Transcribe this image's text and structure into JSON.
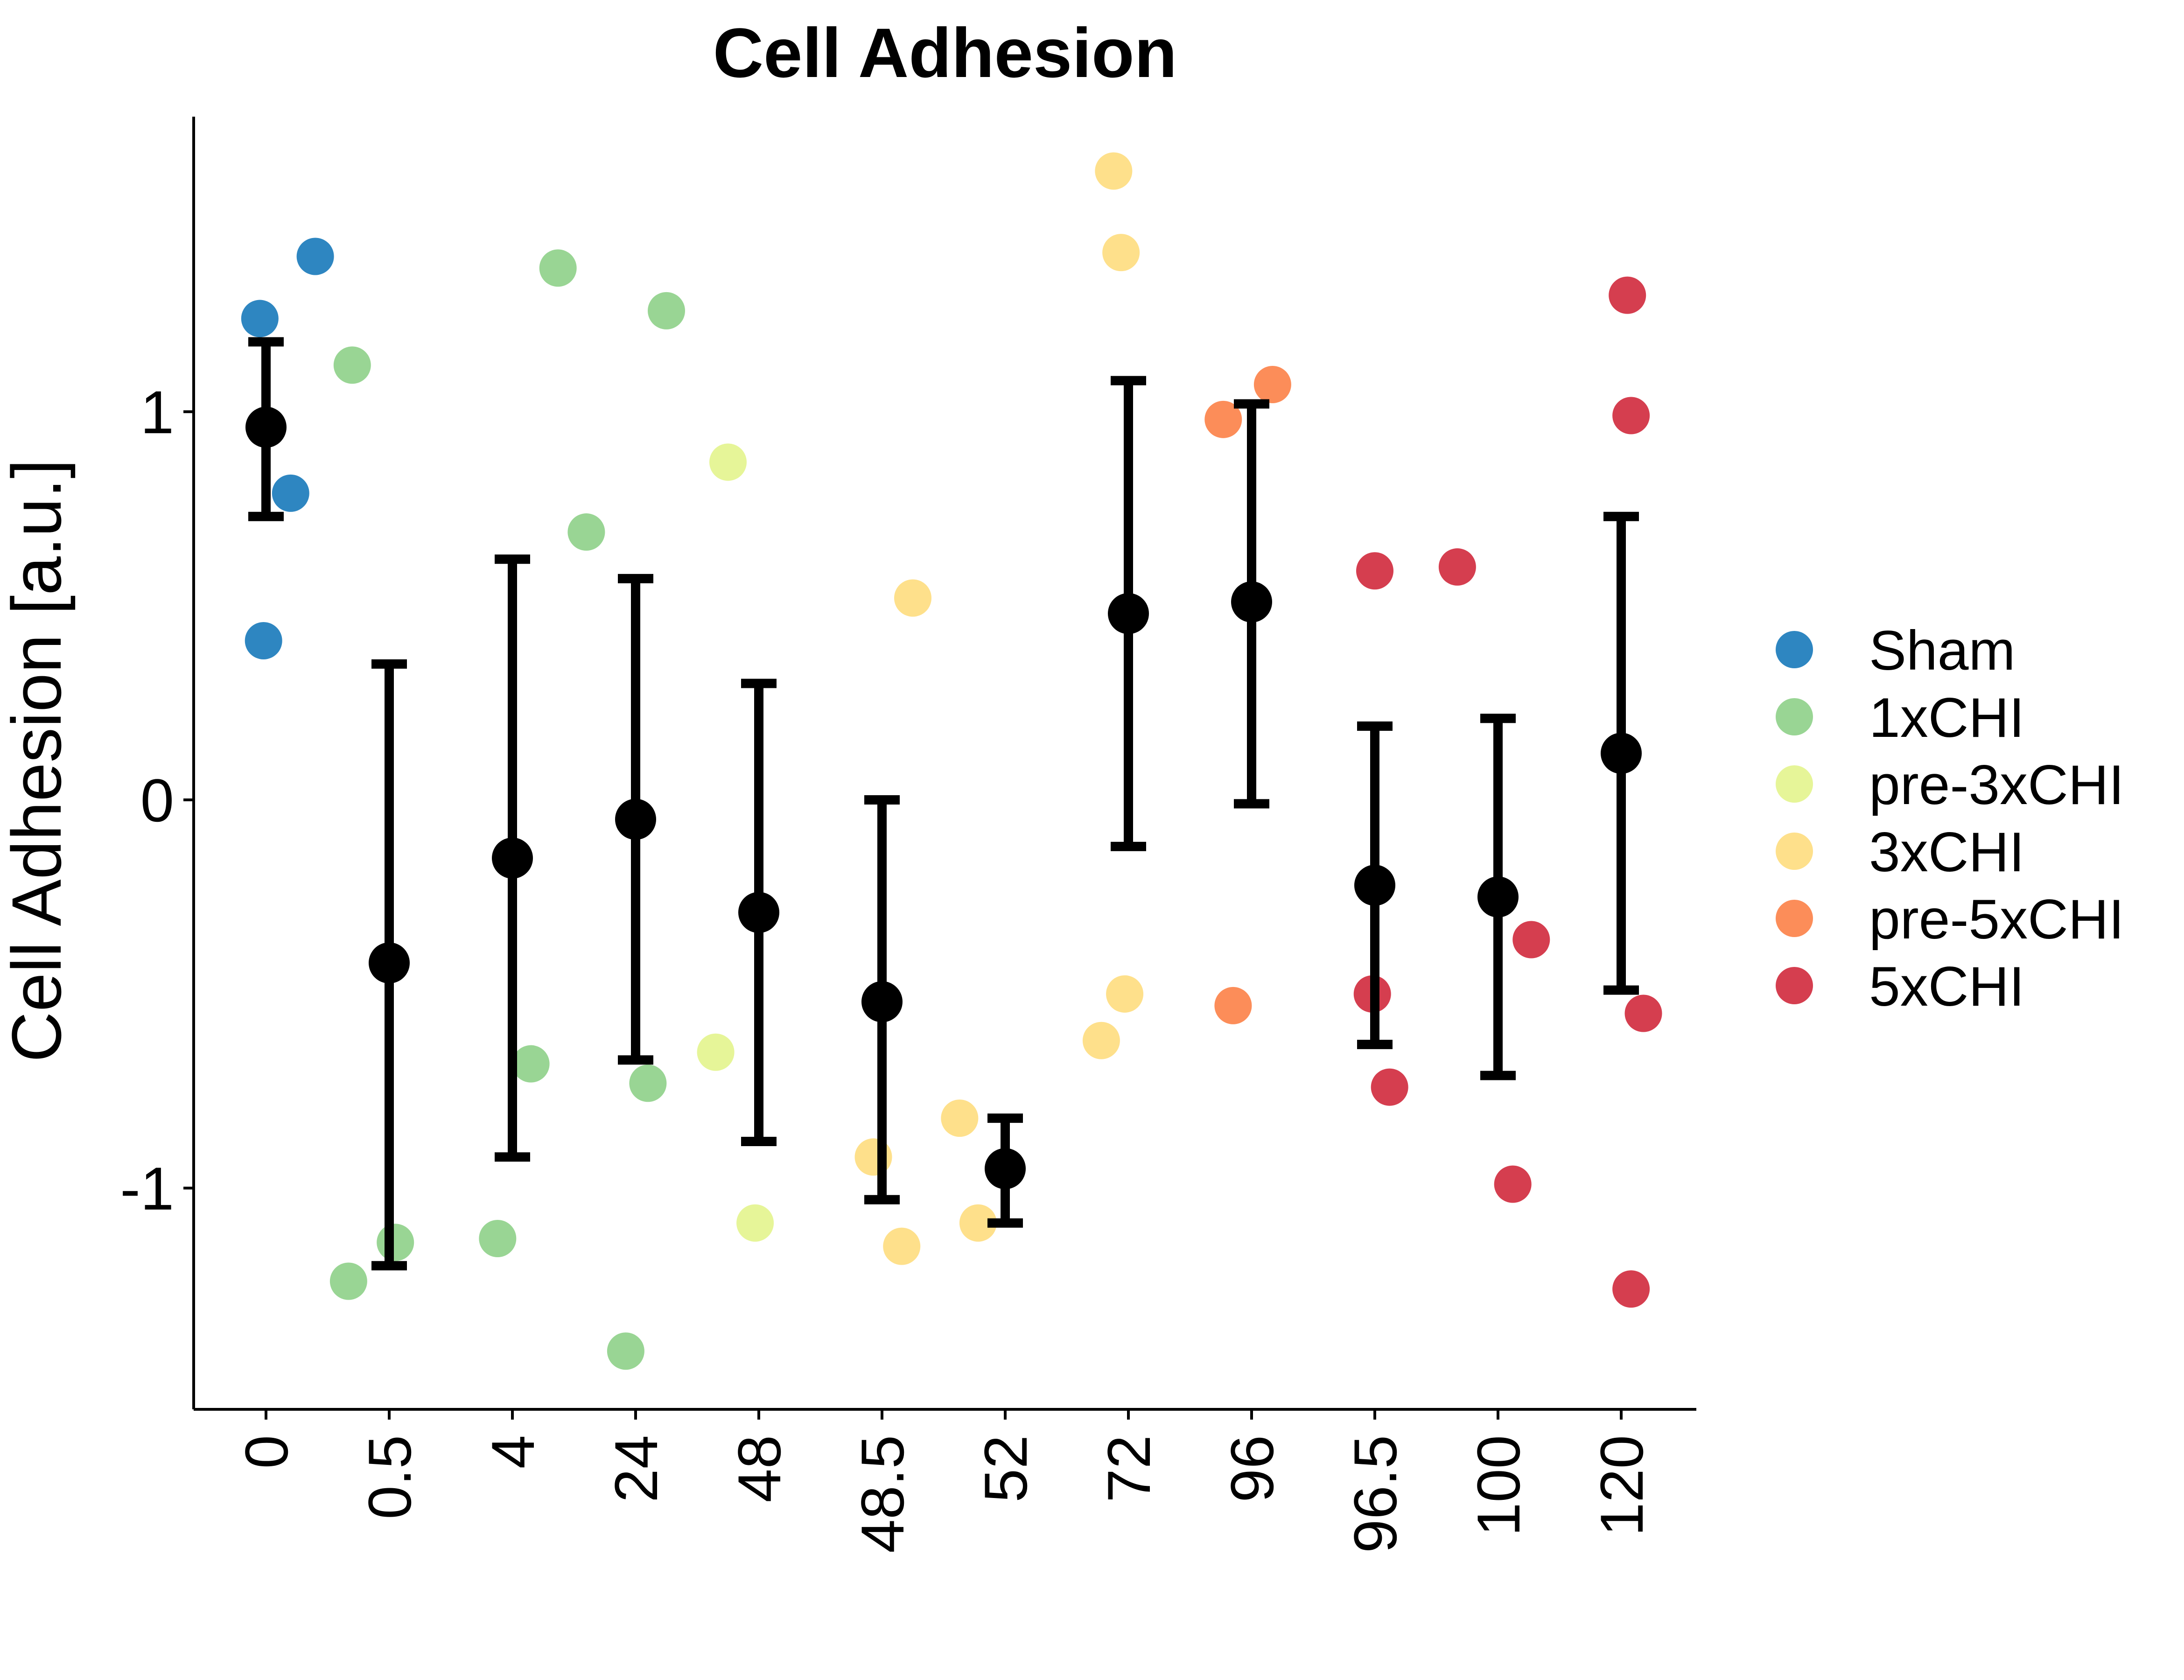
{
  "chart_data": {
    "type": "scatter",
    "title": "Cell Adhesion",
    "xlabel": "",
    "ylabel": "Cell Adhesion [a.u.]",
    "ylim": [
      -1.57,
      1.76
    ],
    "yticks": [
      1,
      0,
      -1
    ],
    "ytick_labels": [
      "1",
      "0",
      "-1"
    ],
    "categories": [
      "0",
      "0.5",
      "4",
      "24",
      "48",
      "48.5",
      "52",
      "72",
      "96",
      "96.5",
      "100",
      "120"
    ],
    "grid": false,
    "legend_position": "right",
    "legend": [
      {
        "name": "Sham",
        "color": "#2E86C1"
      },
      {
        "name": "1xCHI",
        "color": "#99D594"
      },
      {
        "name": "pre-3xCHI",
        "color": "#E6F598"
      },
      {
        "name": "3xCHI",
        "color": "#FEE08B"
      },
      {
        "name": "pre-5xCHI",
        "color": "#FC8D59"
      },
      {
        "name": "5xCHI",
        "color": "#D53E4F"
      }
    ],
    "summary": [
      {
        "category": "0",
        "mean": 0.96,
        "lower": 0.73,
        "upper": 1.18
      },
      {
        "category": "0.5",
        "mean": -0.42,
        "lower": -1.2,
        "upper": 0.35
      },
      {
        "category": "4",
        "mean": -0.15,
        "lower": -0.92,
        "upper": 0.62
      },
      {
        "category": "24",
        "mean": -0.05,
        "lower": -0.67,
        "upper": 0.57
      },
      {
        "category": "48",
        "mean": -0.29,
        "lower": -0.88,
        "upper": 0.3
      },
      {
        "category": "48.5",
        "mean": -0.52,
        "lower": -1.03,
        "upper": 0.0
      },
      {
        "category": "52",
        "mean": -0.95,
        "lower": -1.09,
        "upper": -0.82
      },
      {
        "category": "72",
        "mean": 0.48,
        "lower": -0.12,
        "upper": 1.08
      },
      {
        "category": "96",
        "mean": 0.51,
        "lower": -0.01,
        "upper": 1.02
      },
      {
        "category": "96.5",
        "mean": -0.22,
        "lower": -0.63,
        "upper": 0.19
      },
      {
        "category": "100",
        "mean": -0.25,
        "lower": -0.71,
        "upper": 0.21
      },
      {
        "category": "120",
        "mean": 0.12,
        "lower": -0.49,
        "upper": 0.73
      }
    ],
    "points": [
      {
        "x": -0.05,
        "y": 1.24,
        "group": "Sham"
      },
      {
        "x": 0.4,
        "y": 1.4,
        "group": "Sham"
      },
      {
        "x": 0.2,
        "y": 0.79,
        "group": "Sham"
      },
      {
        "x": -0.02,
        "y": 0.41,
        "group": "Sham"
      },
      {
        "x": 0.7,
        "y": 1.12,
        "group": "1xCHI"
      },
      {
        "x": 0.67,
        "y": -1.24,
        "group": "1xCHI"
      },
      {
        "x": 1.05,
        "y": -1.14,
        "group": "1xCHI"
      },
      {
        "x": 1.88,
        "y": -1.13,
        "group": "1xCHI"
      },
      {
        "x": 2.37,
        "y": 1.37,
        "group": "1xCHI"
      },
      {
        "x": 2.6,
        "y": 0.69,
        "group": "1xCHI"
      },
      {
        "x": 2.15,
        "y": -0.68,
        "group": "1xCHI"
      },
      {
        "x": 3.25,
        "y": 1.26,
        "group": "1xCHI"
      },
      {
        "x": 3.1,
        "y": -0.73,
        "group": "1xCHI"
      },
      {
        "x": 2.92,
        "y": -1.42,
        "group": "1xCHI"
      },
      {
        "x": 3.75,
        "y": 0.87,
        "group": "pre-3xCHI"
      },
      {
        "x": 3.65,
        "y": -0.65,
        "group": "pre-3xCHI"
      },
      {
        "x": 3.97,
        "y": -1.09,
        "group": "pre-3xCHI"
      },
      {
        "x": 5.25,
        "y": 0.52,
        "group": "3xCHI"
      },
      {
        "x": 4.93,
        "y": -0.92,
        "group": "3xCHI"
      },
      {
        "x": 5.16,
        "y": -1.15,
        "group": "3xCHI"
      },
      {
        "x": 5.63,
        "y": -0.82,
        "group": "3xCHI"
      },
      {
        "x": 5.78,
        "y": -1.09,
        "group": "3xCHI"
      },
      {
        "x": 6.88,
        "y": 1.62,
        "group": "3xCHI"
      },
      {
        "x": 6.94,
        "y": 1.41,
        "group": "3xCHI"
      },
      {
        "x": 6.97,
        "y": -0.5,
        "group": "3xCHI"
      },
      {
        "x": 6.78,
        "y": -0.62,
        "group": "3xCHI"
      },
      {
        "x": 7.77,
        "y": 0.98,
        "group": "pre-5xCHI"
      },
      {
        "x": 8.17,
        "y": 1.07,
        "group": "pre-5xCHI"
      },
      {
        "x": 7.85,
        "y": -0.53,
        "group": "pre-5xCHI"
      },
      {
        "x": 9.0,
        "y": 0.59,
        "group": "5xCHI"
      },
      {
        "x": 8.98,
        "y": -0.5,
        "group": "5xCHI"
      },
      {
        "x": 9.12,
        "y": -0.74,
        "group": "5xCHI"
      },
      {
        "x": 9.67,
        "y": 0.6,
        "group": "5xCHI"
      },
      {
        "x": 10.27,
        "y": -0.36,
        "group": "5xCHI"
      },
      {
        "x": 10.12,
        "y": -0.99,
        "group": "5xCHI"
      },
      {
        "x": 11.05,
        "y": 1.3,
        "group": "5xCHI"
      },
      {
        "x": 11.08,
        "y": 0.99,
        "group": "5xCHI"
      },
      {
        "x": 11.18,
        "y": -0.55,
        "group": "5xCHI"
      },
      {
        "x": 11.08,
        "y": -1.26,
        "group": "5xCHI"
      }
    ]
  }
}
